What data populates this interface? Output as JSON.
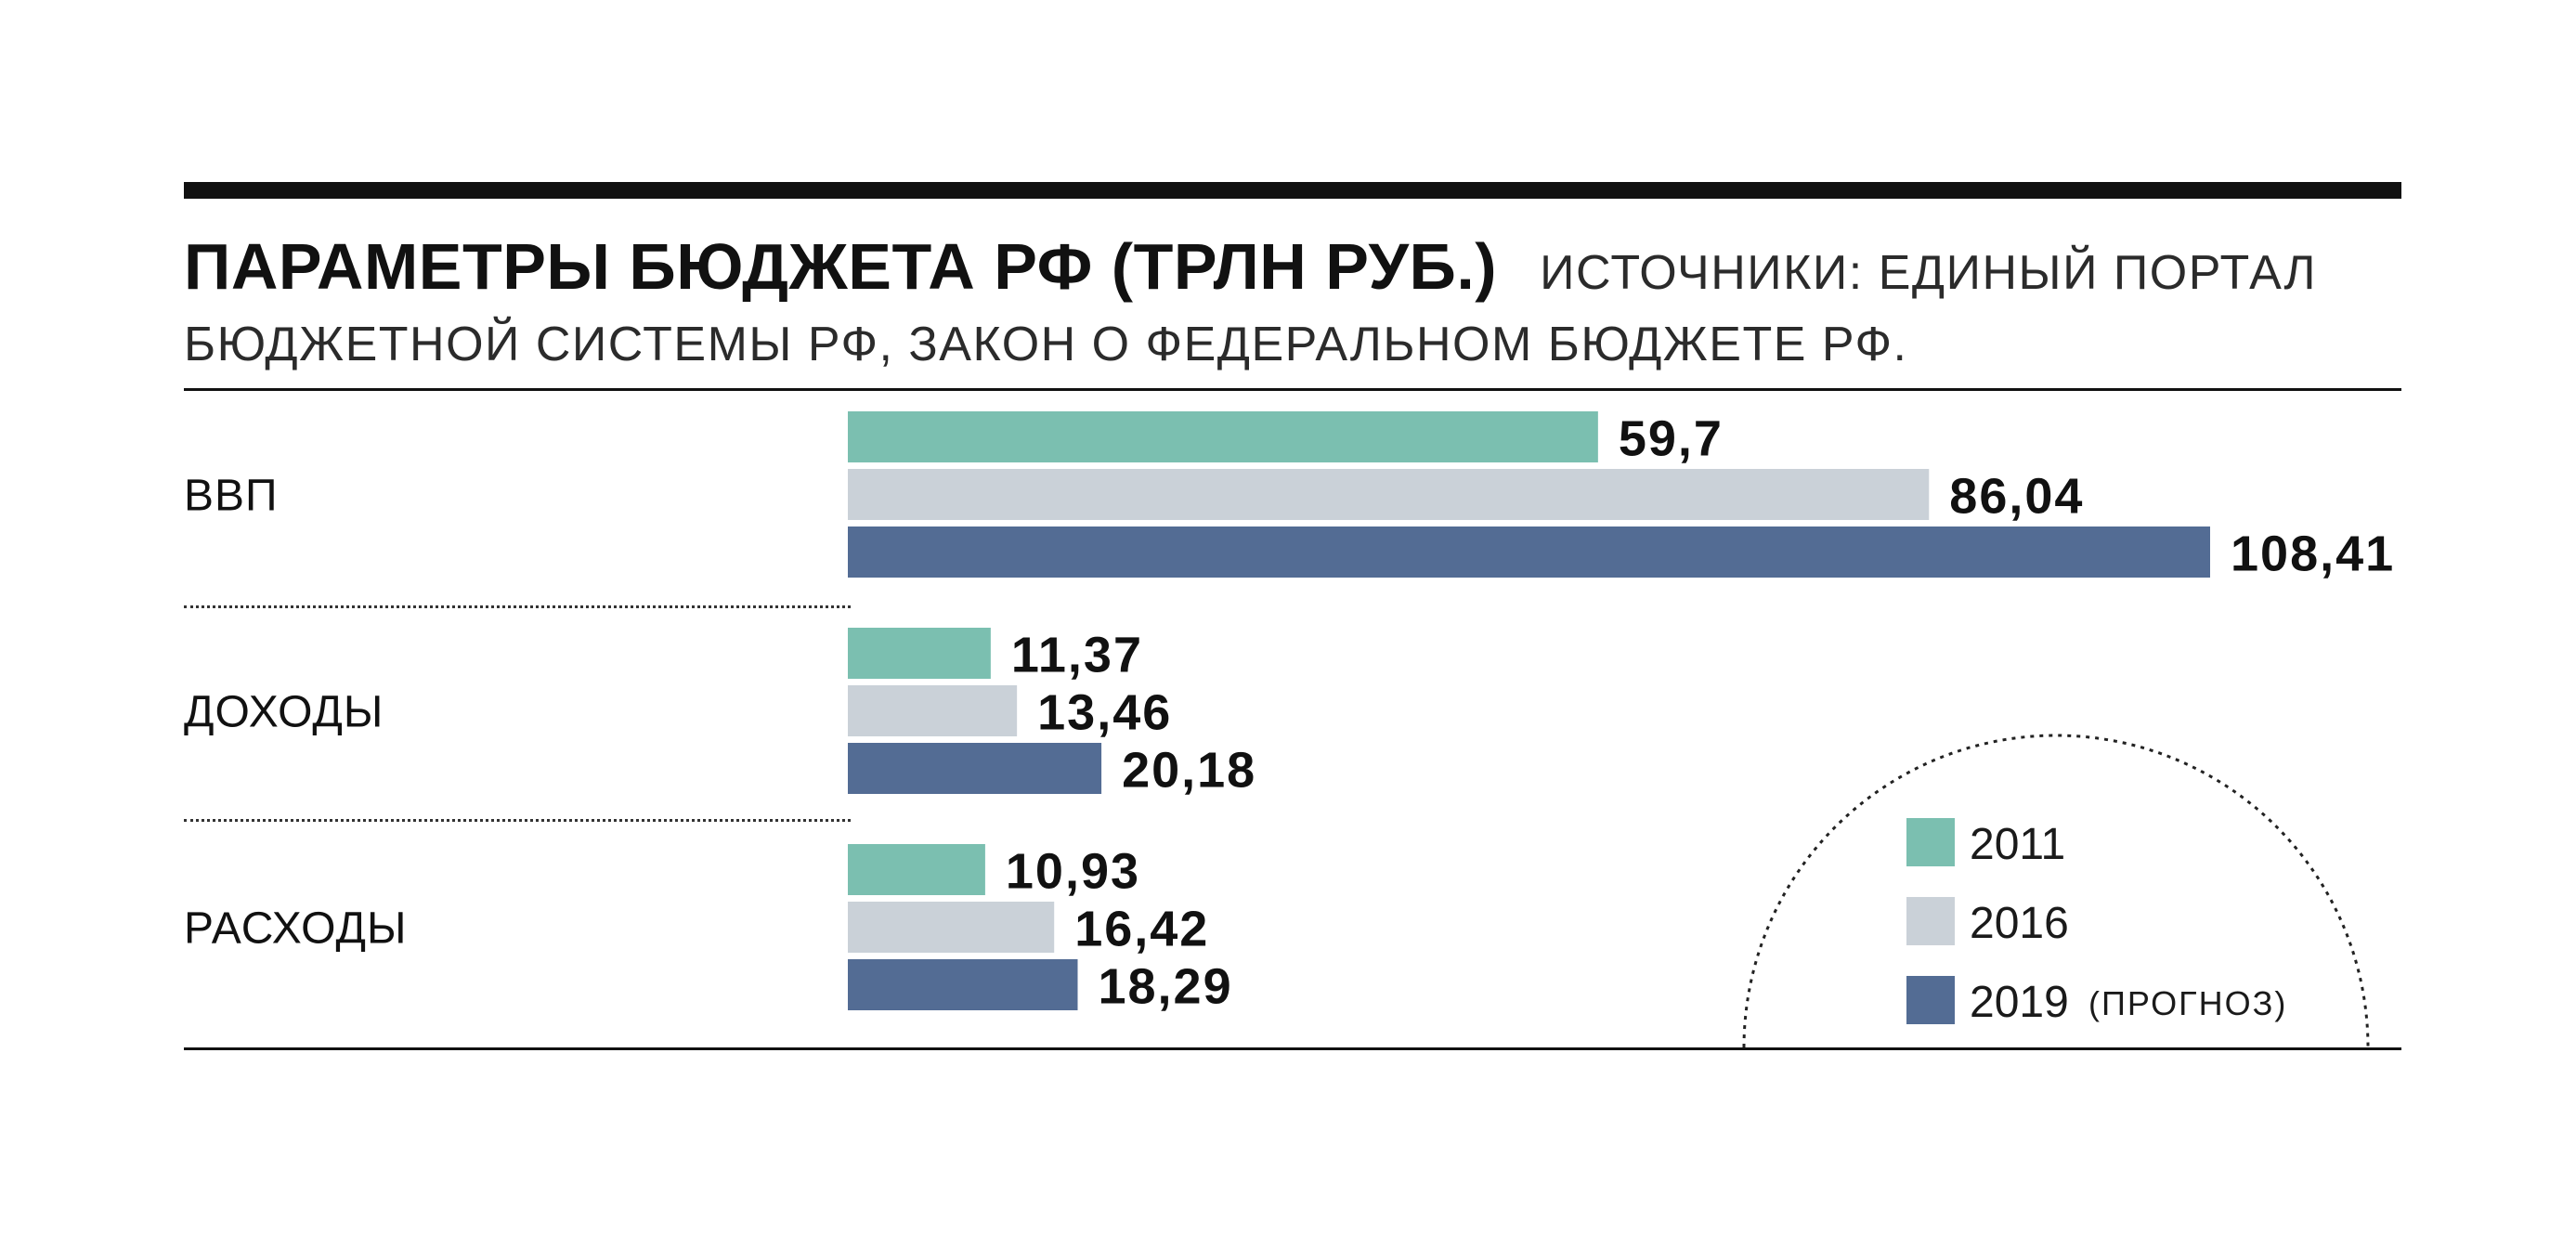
{
  "header": {
    "title": "ПАРАМЕТРЫ БЮДЖЕТА РФ (ТРЛН РУБ.)",
    "source_line1": "ИСТОЧНИКИ: ЕДИНЫЙ ПОРТАЛ",
    "source_line2": "БЮДЖЕТНОЙ СИСТЕМЫ РФ, ЗАКОН О ФЕДЕРАЛЬНОМ БЮДЖЕТЕ РФ."
  },
  "colors": {
    "s2011": "#7bbfb0",
    "s2016": "#cad1d8",
    "s2019": "#536c94",
    "text": "#111111"
  },
  "chart_data": {
    "type": "bar",
    "orientation": "horizontal",
    "title": "ПАРАМЕТРЫ БЮДЖЕТА РФ (ТРЛН РУБ.)",
    "categories": [
      "ВВП",
      "ДОХОДЫ",
      "РАСХОДЫ"
    ],
    "series": [
      {
        "name": "2011",
        "values": [
          59.7,
          11.37,
          10.93
        ],
        "labels": [
          "59,7",
          "11,37",
          "10,93"
        ]
      },
      {
        "name": "2016",
        "values": [
          86.04,
          13.46,
          16.42
        ],
        "labels": [
          "86,04",
          "13,46",
          "16,42"
        ]
      },
      {
        "name": "2019",
        "note": "(ПРОГНОЗ)",
        "values": [
          108.41,
          20.18,
          18.29
        ],
        "labels": [
          "108,41",
          "20,18",
          "18,29"
        ]
      }
    ],
    "xlim": [
      0,
      108.41
    ],
    "grid": false,
    "legend_position": "bottom-right"
  }
}
